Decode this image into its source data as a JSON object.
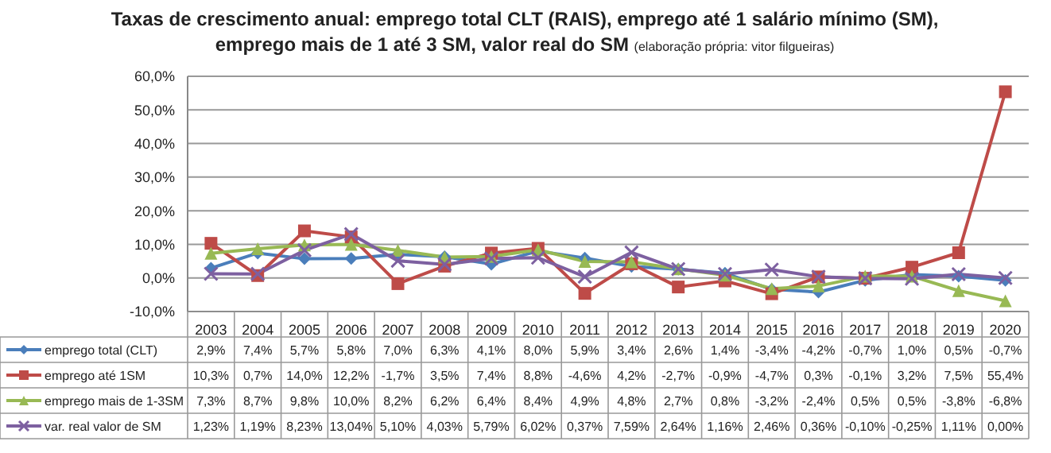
{
  "chart_data": {
    "type": "line",
    "title": "Taxas de crescimento anual: emprego total CLT (RAIS), emprego até 1 salário mínimo (SM), emprego mais de 1 até 3 SM, valor real do SM",
    "subtitle": "(elaboração própria: vitor filgueiras)",
    "categories": [
      "2003",
      "2004",
      "2005",
      "2006",
      "2007",
      "2008",
      "2009",
      "2010",
      "2011",
      "2012",
      "2013",
      "2014",
      "2015",
      "2016",
      "2017",
      "2018",
      "2019",
      "2020"
    ],
    "series": [
      {
        "name": "emprego total (CLT)",
        "color": "#4a7ebb",
        "marker": "diamond",
        "values": [
          2.9,
          7.4,
          5.7,
          5.8,
          7.0,
          6.3,
          4.1,
          8.0,
          5.9,
          3.4,
          2.6,
          1.4,
          -3.4,
          -4.2,
          -0.7,
          1.0,
          0.5,
          -0.7
        ],
        "value_labels": [
          "2,9%",
          "7,4%",
          "5,7%",
          "5,8%",
          "7,0%",
          "6,3%",
          "4,1%",
          "8,0%",
          "5,9%",
          "3,4%",
          "2,6%",
          "1,4%",
          "-3,4%",
          "-4,2%",
          "-0,7%",
          "1,0%",
          "0,5%",
          "-0,7%"
        ]
      },
      {
        "name": "emprego até 1SM",
        "color": "#be4b48",
        "marker": "square",
        "values": [
          10.3,
          0.7,
          14.0,
          12.2,
          -1.7,
          3.5,
          7.4,
          8.8,
          -4.6,
          4.2,
          -2.7,
          -0.9,
          -4.7,
          0.3,
          -0.1,
          3.2,
          7.5,
          55.4
        ],
        "value_labels": [
          "10,3%",
          "0,7%",
          "14,0%",
          "12,2%",
          "-1,7%",
          "3,5%",
          "7,4%",
          "8,8%",
          "-4,6%",
          "4,2%",
          "-2,7%",
          "-0,9%",
          "-4,7%",
          "0,3%",
          "-0,1%",
          "3,2%",
          "7,5%",
          "55,4%"
        ]
      },
      {
        "name": "emprego mais de 1-3SM",
        "color": "#98b954",
        "marker": "triangle",
        "values": [
          7.3,
          8.7,
          9.8,
          10.0,
          8.2,
          6.2,
          6.4,
          8.4,
          4.9,
          4.8,
          2.7,
          0.8,
          -3.2,
          -2.4,
          0.5,
          0.5,
          -3.8,
          -6.8
        ],
        "value_labels": [
          "7,3%",
          "8,7%",
          "9,8%",
          "10,0%",
          "8,2%",
          "6,2%",
          "6,4%",
          "8,4%",
          "4,9%",
          "4,8%",
          "2,7%",
          "0,8%",
          "-3,2%",
          "-2,4%",
          "0,5%",
          "0,5%",
          "-3,8%",
          "-6,8%"
        ]
      },
      {
        "name": "var. real valor de SM",
        "color": "#7d60a0",
        "marker": "cross",
        "values": [
          1.23,
          1.19,
          8.23,
          13.04,
          5.1,
          4.03,
          5.79,
          6.02,
          0.37,
          7.59,
          2.64,
          1.16,
          2.46,
          0.36,
          -0.1,
          -0.25,
          1.11,
          0.0
        ],
        "value_labels": [
          "1,23%",
          "1,19%",
          "8,23%",
          "13,04%",
          "5,10%",
          "4,03%",
          "5,79%",
          "6,02%",
          "0,37%",
          "7,59%",
          "2,64%",
          "1,16%",
          "2,46%",
          "0,36%",
          "-0,10%",
          "-0,25%",
          "1,11%",
          "0,00%"
        ]
      }
    ],
    "ylim": [
      -10,
      60
    ],
    "yticks": [
      {
        "value": -10,
        "label": "-10,0%"
      },
      {
        "value": 0,
        "label": "0,0%"
      },
      {
        "value": 10,
        "label": "10,0%"
      },
      {
        "value": 20,
        "label": "20,0%"
      },
      {
        "value": 30,
        "label": "30,0%"
      },
      {
        "value": 40,
        "label": "40,0%"
      },
      {
        "value": 50,
        "label": "50,0%"
      },
      {
        "value": 60,
        "label": "60,0%"
      }
    ],
    "grid": "y",
    "legend": "bottom left"
  }
}
